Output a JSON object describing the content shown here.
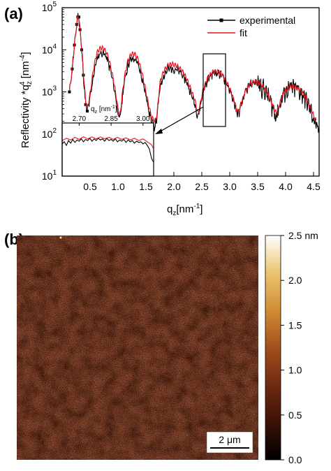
{
  "panels": {
    "a_label": "(a)",
    "b_label": "(b)"
  },
  "chart_data": [
    {
      "type": "line",
      "xlabel": "q₂ [nm⁻¹]",
      "xlabel_base": "q",
      "xlabel_sub": "z",
      "xlabel_unit": "[nm",
      "xlabel_unit_sup": "-1",
      "xlabel_unit_end": "]",
      "ylabel_base": "Reflectivity *q",
      "ylabel_sub": "z",
      "ylabel_sup": "4",
      "ylabel_unit": " [nm",
      "ylabel_unit_sup": "-4",
      "ylabel_unit_end": "]",
      "yscale": "log",
      "xlim": [
        0,
        4.6
      ],
      "ylim": [
        10,
        100000
      ],
      "x_ticks": [
        "0.5",
        "1.0",
        "1.5",
        "2.0",
        "2.5",
        "3.0",
        "3.5",
        "4.0",
        "4.5"
      ],
      "x_tick_values": [
        0.5,
        1.0,
        1.5,
        2.0,
        2.5,
        3.0,
        3.5,
        4.0,
        4.5
      ],
      "y_ticks": [
        {
          "value": 10,
          "base": "10",
          "exp": "1"
        },
        {
          "value": 100,
          "base": "10",
          "exp": "2"
        },
        {
          "value": 1000,
          "base": "10",
          "exp": "3"
        },
        {
          "value": 10000,
          "base": "10",
          "exp": "4"
        },
        {
          "value": 100000,
          "base": "10",
          "exp": "5"
        }
      ],
      "legend_position": "top-right",
      "series": [
        {
          "name": "experimental",
          "color": "#000000",
          "marker": "square",
          "x": [
            0.13,
            0.18,
            0.22,
            0.26,
            0.28,
            0.3,
            0.32,
            0.35,
            0.38,
            0.42,
            0.45,
            0.5,
            0.56,
            0.62,
            0.68,
            0.74,
            0.8,
            0.86,
            0.92,
            0.97,
            1.01,
            1.04,
            1.07,
            1.12,
            1.18,
            1.24,
            1.3,
            1.36,
            1.42,
            1.48,
            1.54,
            1.6,
            1.66,
            1.7,
            1.73,
            1.76,
            1.82,
            1.9,
            1.98,
            2.06,
            2.14,
            2.22,
            2.3,
            2.38,
            2.42,
            2.44,
            2.47,
            2.52,
            2.6,
            2.68,
            2.76,
            2.84,
            2.92,
            3.0,
            3.08,
            3.13,
            3.16,
            3.2,
            3.28,
            3.36,
            3.44,
            3.52,
            3.6,
            3.68,
            3.76,
            3.81,
            3.84,
            3.88,
            3.96,
            4.04,
            4.12,
            4.2,
            4.28,
            4.36,
            4.44,
            4.5,
            4.55,
            4.6
          ],
          "y": [
            1000,
            3500,
            13000,
            40000,
            60000,
            60000,
            30000,
            10000,
            2500,
            500,
            350,
            700,
            2500,
            6000,
            8500,
            8500,
            6500,
            3500,
            1500,
            600,
            250,
            250,
            600,
            2000,
            4500,
            6000,
            6000,
            4500,
            2500,
            1100,
            450,
            200,
            150,
            250,
            700,
            1500,
            2500,
            3500,
            3600,
            3300,
            2700,
            1800,
            1000,
            500,
            300,
            280,
            450,
            1000,
            1900,
            2700,
            2900,
            2600,
            1900,
            1100,
            550,
            320,
            300,
            450,
            1000,
            1500,
            1700,
            1600,
            1300,
            850,
            480,
            320,
            300,
            450,
            900,
            1200,
            1300,
            1200,
            1000,
            700,
            400,
            250,
            150,
            100
          ]
        },
        {
          "name": "fit",
          "color": "#e8141e",
          "marker": "none",
          "x": [
            0.13,
            0.18,
            0.22,
            0.26,
            0.28,
            0.3,
            0.32,
            0.35,
            0.38,
            0.42,
            0.45,
            0.5,
            0.56,
            0.62,
            0.68,
            0.74,
            0.8,
            0.86,
            0.92,
            0.97,
            1.01,
            1.04,
            1.07,
            1.12,
            1.18,
            1.24,
            1.3,
            1.36,
            1.42,
            1.48,
            1.54,
            1.6,
            1.66,
            1.7,
            1.73,
            1.76,
            1.82,
            1.9,
            1.98,
            2.06,
            2.14,
            2.22,
            2.3,
            2.38,
            2.42,
            2.44,
            2.47,
            2.52,
            2.6,
            2.68,
            2.76,
            2.84,
            2.92,
            3.0,
            3.08,
            3.13,
            3.16,
            3.2,
            3.28,
            3.36,
            3.44,
            3.52,
            3.6,
            3.68,
            3.76,
            3.81,
            3.84,
            3.88,
            3.96,
            4.04,
            4.12,
            4.2,
            4.28,
            4.36,
            4.44,
            4.5,
            4.55
          ],
          "y": [
            1000,
            3500,
            13000,
            40000,
            60000,
            60000,
            30000,
            11000,
            3000,
            600,
            400,
            900,
            3500,
            8500,
            11000,
            11000,
            8500,
            4500,
            1900,
            750,
            320,
            300,
            750,
            2500,
            5800,
            8000,
            8000,
            6000,
            3200,
            1400,
            550,
            250,
            200,
            300,
            900,
            1900,
            3200,
            4400,
            4600,
            4100,
            3300,
            2200,
            1200,
            600,
            350,
            320,
            500,
            1100,
            2100,
            2900,
            3100,
            2800,
            2000,
            1200,
            600,
            360,
            340,
            500,
            1050,
            1550,
            1750,
            1650,
            1350,
            900,
            500,
            340,
            320,
            470,
            950,
            1250,
            1350,
            1250,
            1050,
            750,
            430,
            280,
            200
          ]
        }
      ],
      "inset": {
        "type": "line",
        "xlabel_base": "q",
        "xlabel_sub": "z",
        "xlabel_unit": " [nm",
        "xlabel_unit_sup": "-1",
        "xlabel_unit_end": "]",
        "x_ticks": [
          "2.70",
          "2.85",
          "3.00"
        ],
        "x_tick_values": [
          2.7,
          2.85,
          3.0
        ],
        "xlim": [
          2.62,
          3.05
        ],
        "series": [
          {
            "name": "experimental",
            "color": "#000000",
            "x": [
              2.62,
              2.63,
              2.64,
              2.65,
              2.66,
              2.67,
              2.68,
              2.69,
              2.7,
              2.71,
              2.72,
              2.73,
              2.74,
              2.75,
              2.76,
              2.77,
              2.78,
              2.79,
              2.8,
              2.81,
              2.82,
              2.83,
              2.84,
              2.85,
              2.86,
              2.87,
              2.88,
              2.89,
              2.9,
              2.91,
              2.92,
              2.93,
              2.94,
              2.95,
              2.96,
              2.97,
              2.98,
              2.99,
              3.0,
              3.01,
              3.02,
              3.03,
              3.04,
              3.05
            ],
            "y": [
              2200,
              2500,
              2000,
              2700,
              2300,
              2900,
              2400,
              2800,
              2600,
              3000,
              2500,
              2900,
              2700,
              3100,
              2600,
              3000,
              2700,
              3100,
              2800,
              3000,
              2600,
              3100,
              2700,
              2900,
              2600,
              3000,
              2500,
              2800,
              2600,
              2900,
              2400,
              2800,
              2500,
              2700,
              2300,
              2600,
              2400,
              2500,
              2200,
              2400,
              2000,
              1600,
              900,
              700
            ]
          },
          {
            "name": "fit",
            "color": "#e8141e",
            "x": [
              2.62,
              2.64,
              2.66,
              2.68,
              2.7,
              2.72,
              2.74,
              2.76,
              2.78,
              2.8,
              2.82,
              2.84,
              2.86,
              2.88,
              2.9,
              2.92,
              2.94,
              2.96,
              2.98,
              3.0,
              3.02,
              3.04,
              3.05
            ],
            "y": [
              2700,
              3100,
              2800,
              3300,
              2900,
              3400,
              3000,
              3400,
              3000,
              3400,
              3000,
              3300,
              2900,
              3300,
              2900,
              3200,
              2800,
              3100,
              2700,
              3000,
              2500,
              2100,
              1600
            ]
          }
        ]
      }
    },
    {
      "type": "heatmap",
      "scale_bar_label": "2 μm",
      "colorbar_ticks": [
        "0.0",
        "0.5",
        "1.0",
        "1.5",
        "2.0",
        "2.5 nm"
      ],
      "colorbar_tick_values": [
        0,
        0.5,
        1.0,
        1.5,
        2.0,
        2.5
      ],
      "colorbar_range": [
        0,
        2.5
      ],
      "colormap": [
        "#000000",
        "#3a1206",
        "#6e2a10",
        "#a44f1c",
        "#d08a32",
        "#ebc36e",
        "#ffffff"
      ],
      "dominant_color": "#5a2312"
    }
  ]
}
